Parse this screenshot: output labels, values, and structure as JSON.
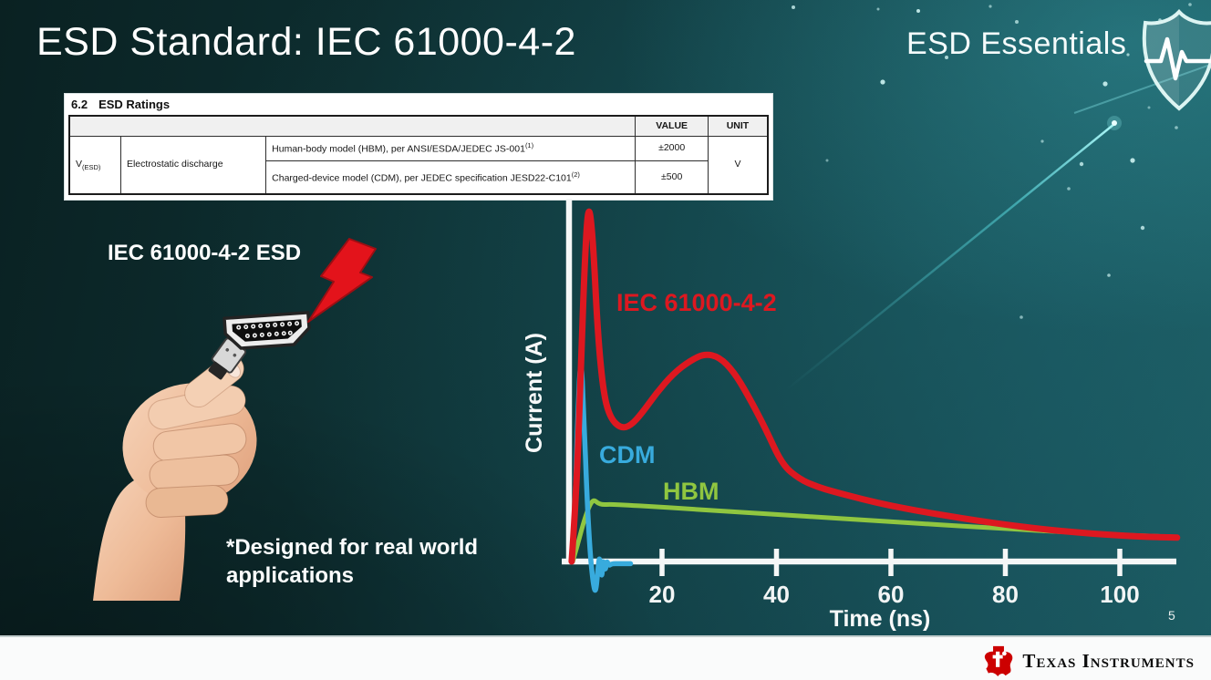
{
  "slide": {
    "title": "ESD Standard: IEC 61000-4-2",
    "program_badge": "ESD Essentials",
    "page_number": "5",
    "illustration_label": "IEC 61000-4-2 ESD",
    "footnote_lines": [
      "*Designed for real world",
      "applications"
    ]
  },
  "ratings_table": {
    "section_number": "6.2",
    "section_title": "ESD Ratings",
    "value_header": "VALUE",
    "unit_header": "UNIT",
    "symbol_base": "V",
    "symbol_sub": "(ESD)",
    "parameter": "Electrostatic discharge",
    "rows": [
      {
        "desc": "Human-body model (HBM), per ANSI/ESDA/JEDEC JS-001",
        "sup": "(1)",
        "value": "±2000"
      },
      {
        "desc": "Charged-device model (CDM), per JEDEC specification JESD22-C101",
        "sup": "(2)",
        "value": "±500"
      }
    ],
    "unit": "V"
  },
  "chart_data": {
    "type": "line",
    "title": "",
    "xlabel": "Time (ns)",
    "ylabel": "Current (A)",
    "x_ticks": [
      20,
      40,
      60,
      80,
      100
    ],
    "xlim": [
      0,
      116
    ],
    "ylim": [
      -0.1,
      1.05
    ],
    "y_axis_note": "y axis unlabeled - qualitative relative current, 1.0 = IEC peak",
    "grid": false,
    "legend_position": "labels-on-curves",
    "series": [
      {
        "name": "IEC 61000-4-2",
        "color": "#dd1820",
        "points": [
          [
            4.2,
            0.0
          ],
          [
            5.0,
            0.18
          ],
          [
            5.8,
            0.52
          ],
          [
            6.4,
            0.8
          ],
          [
            7.1,
            1.0
          ],
          [
            7.9,
            0.9
          ],
          [
            8.8,
            0.62
          ],
          [
            9.8,
            0.46
          ],
          [
            11.0,
            0.395
          ],
          [
            12.8,
            0.368
          ],
          [
            14.5,
            0.375
          ],
          [
            16.5,
            0.41
          ],
          [
            19,
            0.465
          ],
          [
            22,
            0.52
          ],
          [
            25,
            0.556
          ],
          [
            27.5,
            0.574
          ],
          [
            30,
            0.565
          ],
          [
            32.5,
            0.525
          ],
          [
            35,
            0.46
          ],
          [
            38,
            0.37
          ],
          [
            41,
            0.267
          ],
          [
            44,
            0.228
          ],
          [
            47,
            0.207
          ],
          [
            50,
            0.193
          ],
          [
            55,
            0.172
          ],
          [
            60,
            0.154
          ],
          [
            65,
            0.139
          ],
          [
            70,
            0.126
          ],
          [
            75,
            0.113
          ],
          [
            80,
            0.102
          ],
          [
            85,
            0.092
          ],
          [
            90,
            0.084
          ],
          [
            95,
            0.077
          ],
          [
            100,
            0.072
          ],
          [
            105,
            0.068
          ],
          [
            110,
            0.066
          ]
        ]
      },
      {
        "name": "CDM",
        "color": "#38abdd",
        "points": [
          [
            4.3,
            0.0
          ],
          [
            4.75,
            0.13
          ],
          [
            5.2,
            0.37
          ],
          [
            5.8,
            0.589
          ],
          [
            6.35,
            0.4
          ],
          [
            6.9,
            0.17
          ],
          [
            7.45,
            0.02
          ],
          [
            7.95,
            -0.06
          ],
          [
            8.4,
            -0.09
          ],
          [
            8.8,
            -0.02
          ],
          [
            9.1,
            0.02
          ],
          [
            9.45,
            -0.055
          ],
          [
            9.75,
            0.012
          ],
          [
            10.05,
            -0.03
          ],
          [
            10.35,
            0.004
          ],
          [
            10.7,
            -0.012
          ],
          [
            11.2,
            -0.006
          ],
          [
            12.5,
            -0.006
          ],
          [
            14.5,
            -0.006
          ]
        ]
      },
      {
        "name": "HBM",
        "color": "#90c640",
        "points": [
          [
            4.4,
            0.0
          ],
          [
            5.4,
            0.055
          ],
          [
            6.4,
            0.115
          ],
          [
            7.4,
            0.158
          ],
          [
            8.1,
            0.171
          ],
          [
            8.8,
            0.161
          ],
          [
            9.6,
            0.157
          ],
          [
            11,
            0.158
          ],
          [
            14,
            0.156
          ],
          [
            18,
            0.152
          ],
          [
            24,
            0.146
          ],
          [
            30,
            0.14
          ],
          [
            36,
            0.134
          ],
          [
            42,
            0.128
          ],
          [
            48,
            0.122
          ],
          [
            54,
            0.116
          ],
          [
            60,
            0.11
          ],
          [
            66,
            0.104
          ],
          [
            72,
            0.098
          ],
          [
            78,
            0.093
          ],
          [
            84,
            0.087
          ],
          [
            90,
            0.082
          ],
          [
            96,
            0.077
          ],
          [
            102,
            0.072
          ],
          [
            106,
            0.07
          ],
          [
            109.5,
            0.068
          ]
        ]
      }
    ]
  },
  "footer": {
    "brand": "Texas Instruments"
  }
}
